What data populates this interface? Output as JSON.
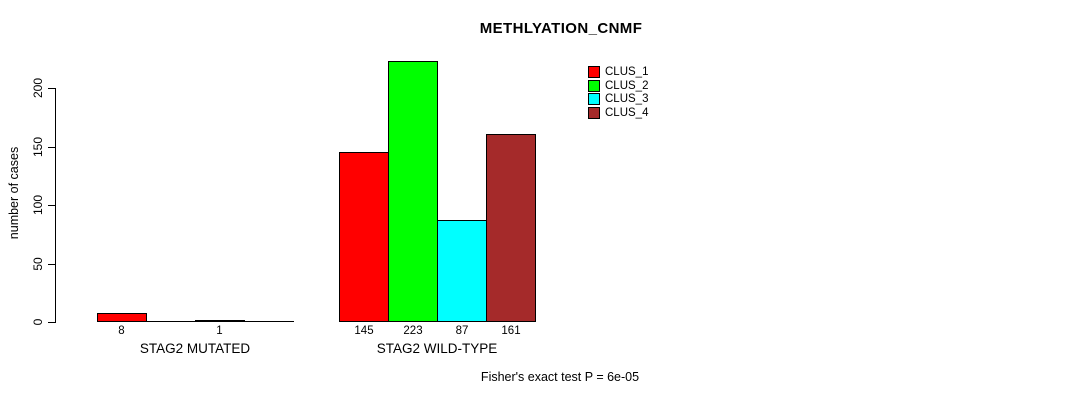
{
  "chart_data": {
    "type": "bar",
    "title": "METHLYATION_CNMF",
    "ylabel": "number of cases",
    "xlabel": "",
    "categories": [
      "STAG2 MUTATED",
      "STAG2 WILD-TYPE"
    ],
    "series": [
      {
        "name": "CLUS_1",
        "color": "#ff0000",
        "values": [
          8,
          145
        ]
      },
      {
        "name": "CLUS_2",
        "color": "#00ff00",
        "values": [
          0,
          223
        ]
      },
      {
        "name": "CLUS_3",
        "color": "#00ffff",
        "values": [
          1,
          87
        ]
      },
      {
        "name": "CLUS_4",
        "color": "#a52a2a",
        "values": [
          0,
          161
        ]
      }
    ],
    "bar_value_labels": [
      [
        "8",
        "",
        "1",
        ""
      ],
      [
        "145",
        "223",
        "87",
        "161"
      ]
    ],
    "yticks": [
      0,
      50,
      100,
      150,
      200
    ],
    "ylim": [
      0,
      225
    ],
    "grid": false,
    "legend_position": "top-right",
    "annotation": "Fisher's exact test P = 6e-05"
  }
}
